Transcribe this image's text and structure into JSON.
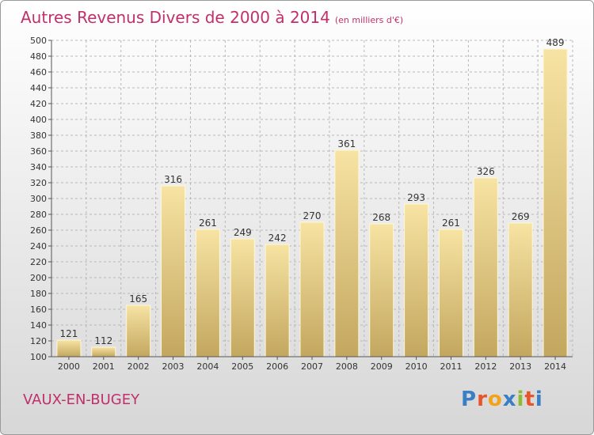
{
  "title": "Autres Revenus Divers de 2000 à 2014",
  "subtitle": "(en milliers d'€)",
  "commune": "VAUX-EN-BUGEY",
  "logo": {
    "text": "Proxiti",
    "letter_colors": [
      "#3a7fc4",
      "#e8542c",
      "#f2a31b",
      "#3a7fc4",
      "#8bbd2e",
      "#e8542c",
      "#3a7fc4"
    ]
  },
  "colors": {
    "title": "#c0306a",
    "bar_light": "#f7e3a3",
    "bar_dark": "#c3a75f",
    "grid": "#b8b8b8"
  },
  "chart_data": {
    "type": "bar",
    "title": "Autres Revenus Divers de 2000 à 2014",
    "subtitle": "(en milliers d'€)",
    "categories": [
      "2000",
      "2001",
      "2002",
      "2003",
      "2004",
      "2005",
      "2006",
      "2007",
      "2008",
      "2009",
      "2010",
      "2011",
      "2012",
      "2013",
      "2014"
    ],
    "values": [
      121,
      112,
      165,
      316,
      261,
      249,
      242,
      270,
      361,
      268,
      293,
      261,
      326,
      269,
      489
    ],
    "ylim": [
      100,
      500
    ],
    "ytick_step": 20,
    "grid": true,
    "data_labels": true
  }
}
